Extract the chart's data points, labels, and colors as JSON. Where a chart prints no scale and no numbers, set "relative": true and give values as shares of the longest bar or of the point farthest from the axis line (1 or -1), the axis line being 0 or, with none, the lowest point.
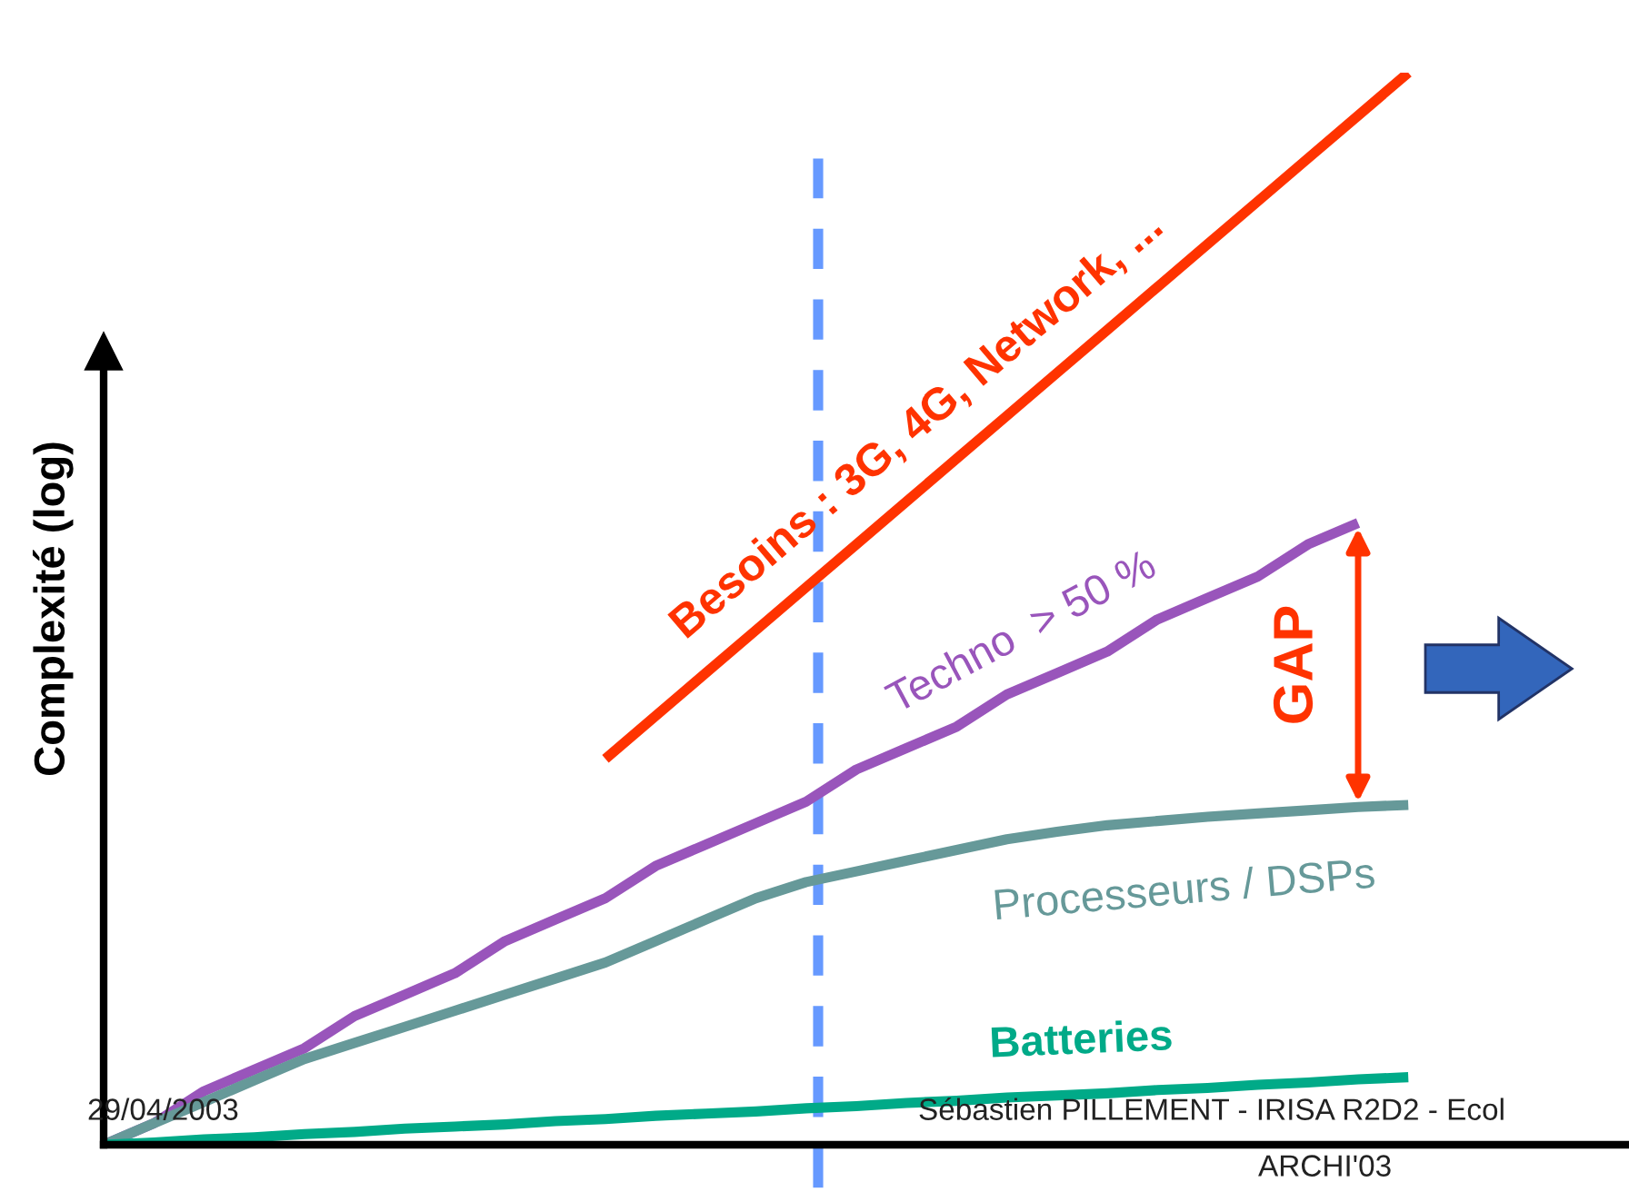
{
  "chart_data": {
    "type": "line",
    "relative": true,
    "ylabel": "Complexité (log)",
    "grid": false,
    "categories": [
      null,
      null,
      null,
      null,
      null,
      null,
      null,
      null,
      null,
      null,
      null,
      null,
      null,
      null,
      null,
      null,
      null,
      null,
      null,
      null,
      null,
      null,
      null,
      null,
      null,
      null,
      null
    ],
    "series": [
      {
        "name": "Besoins : 3G, 4G, Network, ...",
        "color": "#ff3300",
        "values": [
          null,
          null,
          null,
          null,
          null,
          null,
          null,
          null,
          null,
          null,
          0.36,
          0.4,
          0.44,
          0.48,
          0.52,
          0.56,
          0.6,
          0.64,
          0.68,
          0.72,
          0.76,
          0.8,
          0.84,
          0.88,
          0.92,
          0.96,
          1.0
        ]
      },
      {
        "name": "Techno  > 50 %",
        "color": "#9955bb",
        "values": [
          0,
          0.02,
          0.05,
          0.07,
          0.09,
          0.12,
          0.14,
          0.16,
          0.19,
          0.21,
          0.23,
          0.26,
          0.28,
          0.3,
          0.32,
          0.35,
          0.37,
          0.39,
          0.42,
          0.44,
          0.46,
          0.49,
          0.51,
          0.53,
          0.56,
          0.58,
          null
        ]
      },
      {
        "name": "Processeurs / DSPs",
        "color": "#669999",
        "values": [
          0,
          0.02,
          0.04,
          0.06,
          0.08,
          0.095,
          0.11,
          0.125,
          0.14,
          0.155,
          0.17,
          0.19,
          0.21,
          0.23,
          0.245,
          0.255,
          0.265,
          0.275,
          0.285,
          0.292,
          0.298,
          0.302,
          0.306,
          0.309,
          0.312,
          0.315,
          0.317
        ]
      },
      {
        "name": "Batteries",
        "color": "#00aa88",
        "values": [
          0,
          0.002,
          0.005,
          0.007,
          0.01,
          0.012,
          0.015,
          0.017,
          0.019,
          0.022,
          0.024,
          0.027,
          0.029,
          0.031,
          0.034,
          0.036,
          0.039,
          0.041,
          0.044,
          0.046,
          0.048,
          0.051,
          0.053,
          0.056,
          0.058,
          0.061,
          0.063
        ]
      }
    ],
    "annotations": [
      "GAP",
      "29/04/2003",
      "Sébastien PILLEMENT - IRISA R2D2 - Ecol",
      "ARCHI'03"
    ]
  }
}
